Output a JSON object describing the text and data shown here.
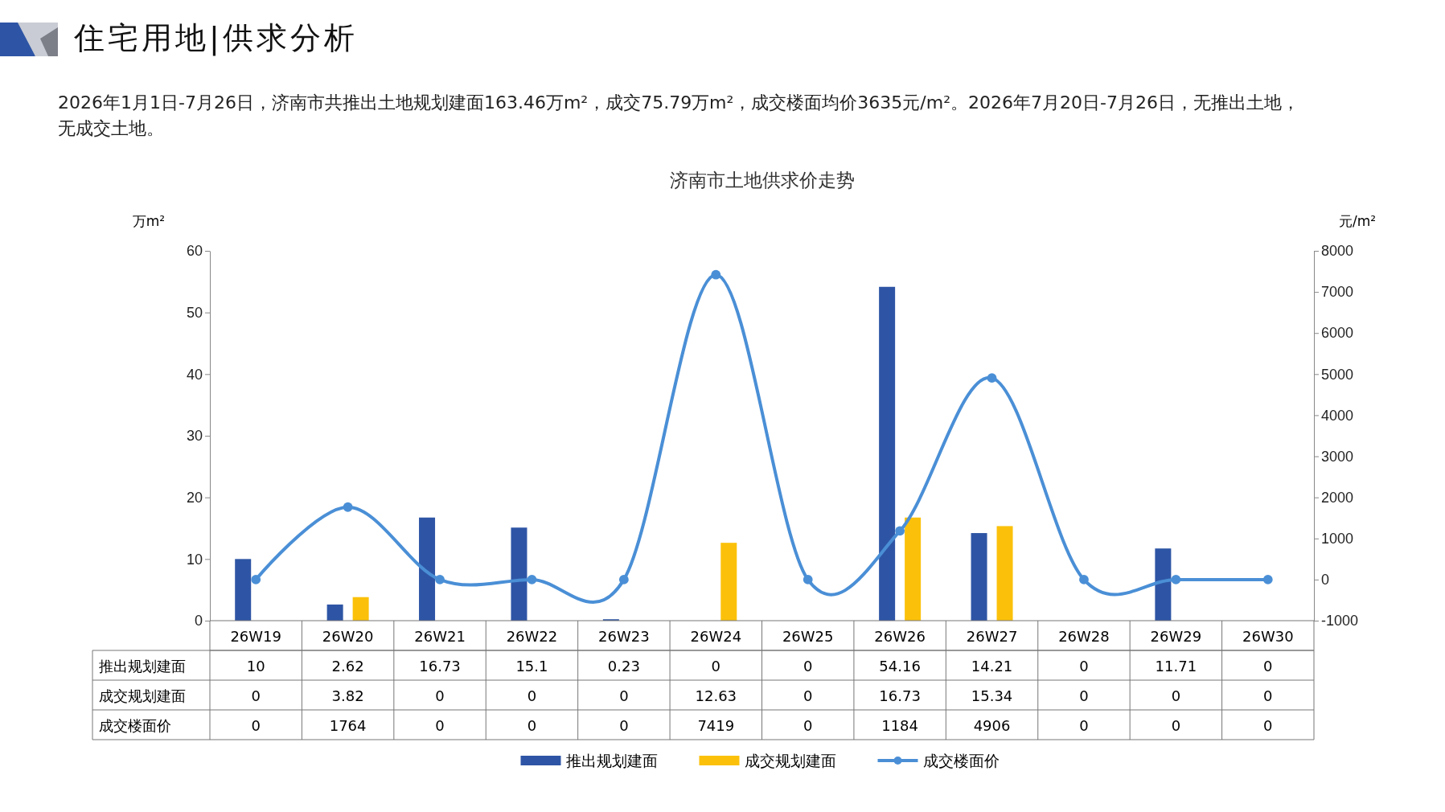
{
  "chart_data": {
    "type": "bar",
    "title": "济南市土地供求价走势",
    "annotations": [
      "住宅用地|供求分析",
      "2026年1月1日-7月26日，济南市共推出土地规划建面163.46万m²，成交75.79万m²，成交楼面均价3635元/m²。2026年7月20日-7月26日，无推出土地，无成交土地。"
    ],
    "categories": [
      "26W19",
      "26W20",
      "26W21",
      "26W22",
      "26W23",
      "26W24",
      "26W25",
      "26W26",
      "26W27",
      "26W28",
      "26W29",
      "26W30"
    ],
    "series": [
      {
        "name": "推出规划建面",
        "color": "#2e55a5",
        "values": [
          10,
          2.62,
          16.73,
          15.1,
          0.23,
          0,
          0,
          54.16,
          14.21,
          0,
          11.71,
          0
        ]
      },
      {
        "name": "成交规划建面",
        "color": "#fbc10a",
        "values": [
          0,
          3.82,
          0,
          0,
          0,
          12.63,
          0,
          16.73,
          15.34,
          0,
          0,
          0
        ]
      },
      {
        "name": "成交楼面价",
        "type": "line",
        "axis": "y2",
        "color": "#4a8fd6",
        "marker": "circle",
        "values": [
          0,
          1764,
          0,
          0,
          0,
          7419,
          0,
          1184,
          4906,
          0,
          0,
          0
        ]
      }
    ],
    "ylabel": "万m²",
    "y2label": "元/m²",
    "ylim": [
      0,
      60
    ],
    "yticks": [
      0,
      10,
      20,
      30,
      40,
      50,
      60
    ],
    "y2lim": [
      -1000,
      8000
    ],
    "y2ticks": [
      -1000,
      0,
      1000,
      2000,
      3000,
      4000,
      5000,
      6000,
      7000,
      8000
    ],
    "data_labels": true,
    "legend": "bottom",
    "grid": false
  }
}
